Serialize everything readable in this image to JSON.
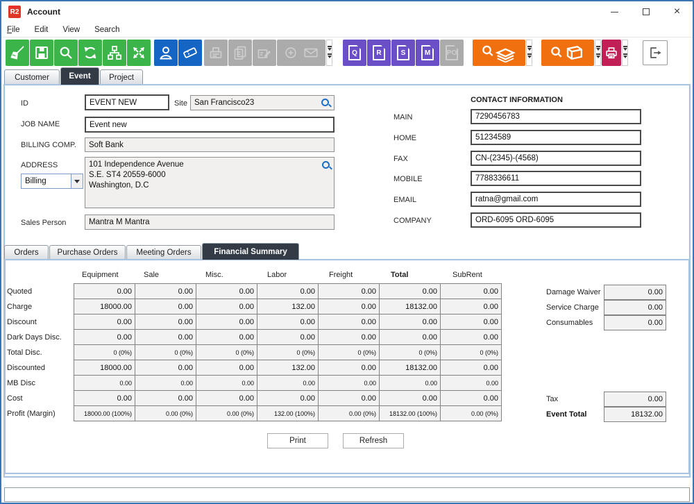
{
  "colors": {
    "green": "#3bb44a",
    "blue": "#1565c5",
    "purple": "#6a4fc6",
    "orange": "#f06f0f",
    "crimson": "#c11f55",
    "active_tab": "#333b46",
    "search_accent": "#1a6fc4",
    "logo_red": "#e2352a"
  },
  "window": {
    "logo_text": "R2",
    "title": "Account",
    "close_glyph": "×"
  },
  "menu_bar": {
    "items": [
      "File",
      "Edit",
      "View",
      "Search"
    ]
  },
  "toolbar": {
    "doc_buttons": [
      "Q",
      "R",
      "S",
      "M",
      "PO"
    ]
  },
  "main_tabs": {
    "items": [
      "Customer",
      "Event",
      "Project"
    ],
    "active": "Event"
  },
  "event_form": {
    "id_label": "ID",
    "id_value": "EVENT NEW",
    "site_label": "Site",
    "site_value": "San Francisco23",
    "job_name_label": "JOB NAME",
    "job_name_value": "Event new",
    "billing_comp_label": "BILLING COMP.",
    "billing_comp_value": "Soft Bank",
    "address_label": "ADDRESS",
    "address_type_value": "Billing",
    "address_lines": [
      "101 Independence Avenue",
      "S.E. ST4 20559-6000",
      "Washington, D.C"
    ],
    "sales_person_label": "Sales Person",
    "sales_person_value": "Mantra M Mantra"
  },
  "contact": {
    "heading": "CONTACT INFORMATION",
    "fields": [
      {
        "label": "MAIN",
        "value": "7290456783"
      },
      {
        "label": "HOME",
        "value": "51234589"
      },
      {
        "label": "FAX",
        "value": "CN-(2345)-(4568)"
      },
      {
        "label": "MOBILE",
        "value": "7788336611"
      },
      {
        "label": "EMAIL",
        "value": "ratna@gmail.com"
      },
      {
        "label": "COMPANY",
        "value": "ORD-6095 ORD-6095"
      }
    ]
  },
  "sub_tabs": {
    "items": [
      "Orders",
      "Purchase Orders",
      "Meeting Orders",
      "Financial Summary"
    ],
    "active": "Financial Summary"
  },
  "financial": {
    "columns": [
      "Equipment",
      "Sale",
      "Misc.",
      "Labor",
      "Freight",
      "Total",
      "SubRent"
    ],
    "bold_column": "Total",
    "rows": [
      {
        "label": "Quoted",
        "small": false,
        "values": [
          "0.00",
          "0.00",
          "0.00",
          "0.00",
          "0.00",
          "0.00",
          "0.00"
        ]
      },
      {
        "label": "Charge",
        "small": false,
        "values": [
          "18000.00",
          "0.00",
          "0.00",
          "132.00",
          "0.00",
          "18132.00",
          "0.00"
        ]
      },
      {
        "label": "Discount",
        "small": false,
        "values": [
          "0.00",
          "0.00",
          "0.00",
          "0.00",
          "0.00",
          "0.00",
          "0.00"
        ]
      },
      {
        "label": "Dark Days Disc.",
        "small": false,
        "values": [
          "0.00",
          "0.00",
          "0.00",
          "0.00",
          "0.00",
          "0.00",
          "0.00"
        ]
      },
      {
        "label": "Total Disc.",
        "small": true,
        "values": [
          "0 (0%)",
          "0 (0%)",
          "0 (0%)",
          "0 (0%)",
          "0 (0%)",
          "0 (0%)",
          "0 (0%)"
        ]
      },
      {
        "label": "Discounted",
        "small": false,
        "values": [
          "18000.00",
          "0.00",
          "0.00",
          "132.00",
          "0.00",
          "18132.00",
          "0.00"
        ]
      },
      {
        "label": "MB Disc",
        "small": true,
        "values": [
          "0.00",
          "0.00",
          "0.00",
          "0.00",
          "0.00",
          "0.00",
          "0.00"
        ]
      },
      {
        "label": "Cost",
        "small": false,
        "values": [
          "0.00",
          "0.00",
          "0.00",
          "0.00",
          "0.00",
          "0.00",
          "0.00"
        ]
      },
      {
        "label": "Profit (Margin)",
        "small": true,
        "values": [
          "18000.00 (100%)",
          "0.00 (0%)",
          "0.00 (0%)",
          "132.00 (100%)",
          "0.00 (0%)",
          "18132.00 (100%)",
          "0.00 (0%)"
        ]
      }
    ],
    "side_top": [
      {
        "label": "Damage Waiver",
        "value": "0.00"
      },
      {
        "label": "Service Charge",
        "value": "0.00"
      },
      {
        "label": "Consumables",
        "value": "0.00"
      }
    ],
    "side_bottom": [
      {
        "label": "Tax",
        "value": "0.00",
        "bold": false
      },
      {
        "label": "Event Total",
        "value": "18132.00",
        "bold": true
      }
    ]
  },
  "actions": {
    "print": "Print",
    "refresh": "Refresh"
  }
}
